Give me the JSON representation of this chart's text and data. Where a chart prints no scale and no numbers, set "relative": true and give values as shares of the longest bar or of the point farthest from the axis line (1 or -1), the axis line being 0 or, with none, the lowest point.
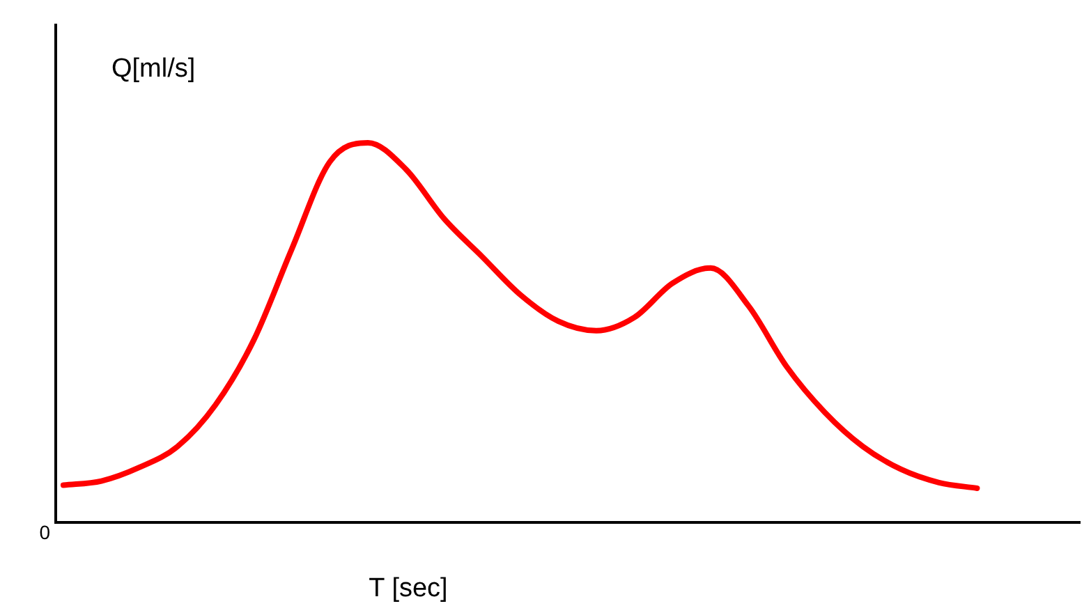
{
  "chart_data": {
    "type": "line",
    "relative": true,
    "xlabel": "T [sec]",
    "ylabel": "Q[ml/s]",
    "annotations": [
      "0"
    ],
    "grid": false,
    "legend": false,
    "marker": "none",
    "line_style": "solid",
    "categories": [
      null,
      null,
      null,
      null,
      null,
      null,
      null,
      null,
      null,
      null,
      null,
      null,
      null,
      null,
      null,
      null,
      null,
      null,
      null,
      null,
      null,
      null,
      null,
      null,
      null
    ],
    "series": [
      {
        "color": "#ff0000",
        "values": [
          0.098,
          0.109,
          0.145,
          0.2,
          0.31,
          0.48,
          0.72,
          0.95,
          1,
          0.93,
          0.8,
          0.7,
          0.6,
          0.53,
          0.505,
          0.54,
          0.63,
          0.67,
          0.57,
          0.41,
          0.29,
          0.2,
          0.14,
          0.105,
          0.09
        ]
      }
    ]
  }
}
